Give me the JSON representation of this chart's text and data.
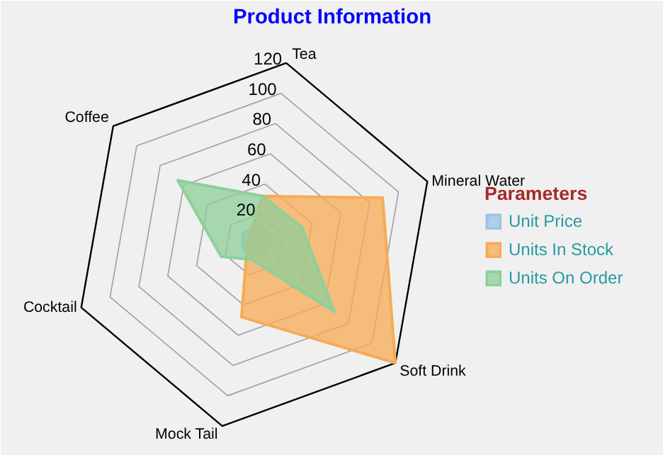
{
  "chart_data": {
    "type": "radar",
    "title": "Product Information",
    "legend_title": "Parameters",
    "categories": [
      "Tea",
      "Mineral Water",
      "Soft Drink",
      "Mock Tail",
      "Cocktail",
      "Coffee"
    ],
    "ylim": [
      0,
      120
    ],
    "yticks": [
      20,
      40,
      60,
      80,
      100,
      120
    ],
    "legend": "right",
    "grid": true,
    "series": [
      {
        "name": "Unit Price",
        "color": "#9cc3e6",
        "values": [
          15,
          12,
          10,
          8,
          8,
          10
        ]
      },
      {
        "name": "Units In Stock",
        "color": "#f7ab55",
        "values": [
          32,
          89,
          120,
          48,
          5,
          5
        ]
      },
      {
        "name": "Units On Order",
        "color": "#8fcf9a",
        "values": [
          32,
          33,
          68,
          10,
          23,
          65
        ]
      }
    ]
  }
}
